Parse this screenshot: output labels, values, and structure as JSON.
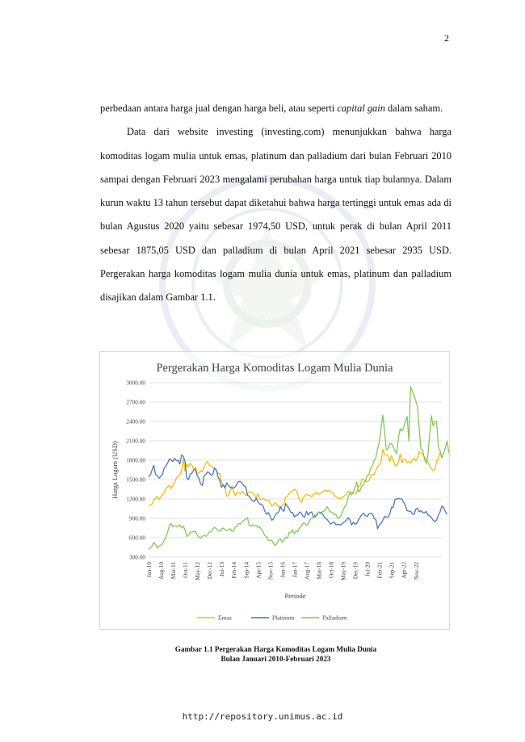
{
  "page_number": "2",
  "paragraphs": [
    {
      "indent": false,
      "parts": [
        {
          "text": "perbedaan antara harga jual dengan harga beli, atau seperti ",
          "italic": false
        },
        {
          "text": "capital gain",
          "italic": true
        },
        {
          "text": " dalam saham.",
          "italic": false
        }
      ]
    },
    {
      "indent": true,
      "parts": [
        {
          "text": "Data dari website investing (investing.com) menunjukkan bahwa harga komoditas logam mulia untuk emas, platinum dan palladium dari bulan Februari 2010 sampai dengan Februari 2023 mengalami perubahan harga untuk tiap bulannya. Dalam kurun waktu 13 tahun tersebut dapat diketahui bahwa harga tertinggi untuk emas ada di bulan Agustus 2020 yaitu sebesar 1974,50 USD, untuk perak di bulan April 2011 sebesar 1875,05 USD dan palladium di bulan April 2021 sebesar 2935 USD. Pergerakan harga komoditas logam mulia dunia untuk emas, platinum dan palladium disajikan dalam Gambar 1.1.",
          "italic": false
        }
      ]
    }
  ],
  "chart_data": {
    "type": "line",
    "title": "Pergerakan Harga Komoditas Logam Mulia Dunia",
    "xlabel": "Periode",
    "ylabel": "Harga Logam (USD)",
    "ylim": [
      300,
      3000
    ],
    "yticks": [
      "300.00",
      "600.00",
      "900.00",
      "1200.00",
      "1500.00",
      "1800.00",
      "2100.00",
      "2400.00",
      "2700.00",
      "3000.00"
    ],
    "ytick_values": [
      300,
      600,
      900,
      1200,
      1500,
      1800,
      2100,
      2400,
      2700,
      3000
    ],
    "x_tick_labels": [
      "Jan-10",
      "Aug-10",
      "Mar-11",
      "Oct-11",
      "May-12",
      "Dec-12",
      "Jul-13",
      "Feb-14",
      "Sep-14",
      "Apr-15",
      "Nov-15",
      "Jun-16",
      "Jan-17",
      "Aug-17",
      "Mar-18",
      "Oct-18",
      "May-19",
      "Dec-19",
      "Jul-20",
      "Feb-21",
      "Sep-21",
      "Apr-22",
      "Nov-22"
    ],
    "grid": true,
    "legend_position": "bottom",
    "series": [
      {
        "name": "Emas",
        "color": "#f5b800",
        "values": [
          1090,
          1110,
          1120,
          1180,
          1210,
          1240,
          1190,
          1230,
          1260,
          1300,
          1360,
          1390,
          1410,
          1360,
          1420,
          1440,
          1530,
          1550,
          1570,
          1630,
          1820,
          1630,
          1740,
          1700,
          1750,
          1720,
          1660,
          1690,
          1590,
          1600,
          1640,
          1620,
          1700,
          1750,
          1780,
          1720,
          1710,
          1690,
          1670,
          1640,
          1600,
          1590,
          1460,
          1420,
          1390,
          1240,
          1260,
          1330,
          1400,
          1320,
          1250,
          1300,
          1300,
          1280,
          1320,
          1290,
          1250,
          1280,
          1310,
          1310,
          1290,
          1260,
          1210,
          1280,
          1200,
          1190,
          1210,
          1190,
          1180,
          1180,
          1140,
          1090,
          1110,
          1140,
          1110,
          1080,
          1060,
          1100,
          1120,
          1230,
          1240,
          1290,
          1310,
          1320,
          1350,
          1330,
          1270,
          1180,
          1150,
          1210,
          1250,
          1270,
          1260,
          1260,
          1230,
          1270,
          1280,
          1310,
          1270,
          1280,
          1310,
          1320,
          1340,
          1320,
          1330,
          1310,
          1300,
          1260,
          1230,
          1220,
          1200,
          1210,
          1230,
          1250,
          1280,
          1320,
          1310,
          1300,
          1290,
          1280,
          1300,
          1400,
          1410,
          1510,
          1500,
          1470,
          1470,
          1480,
          1560,
          1580,
          1580,
          1640,
          1700,
          1730,
          1770,
          1970,
          1890,
          1880,
          1870,
          1780,
          1870,
          1800,
          1730,
          1710,
          1770,
          1900,
          1760,
          1810,
          1810,
          1760,
          1780,
          1760,
          1800,
          1830,
          1790,
          1830,
          1930,
          1910,
          1890,
          1850,
          1810,
          1770,
          1710,
          1670,
          1640,
          1660,
          1770,
          1830,
          1920,
          1830
        ]
      },
      {
        "name": "Platinum",
        "color": "#4472c4",
        "values": [
          1540,
          1570,
          1650,
          1720,
          1580,
          1560,
          1520,
          1550,
          1580,
          1680,
          1710,
          1760,
          1820,
          1800,
          1780,
          1830,
          1790,
          1800,
          1740,
          1880,
          1860,
          1780,
          1520,
          1500,
          1580,
          1600,
          1650,
          1660,
          1560,
          1520,
          1430,
          1410,
          1560,
          1580,
          1620,
          1600,
          1570,
          1580,
          1680,
          1650,
          1540,
          1490,
          1380,
          1420,
          1370,
          1450,
          1410,
          1380,
          1370,
          1370,
          1390,
          1440,
          1470,
          1470,
          1440,
          1400,
          1390,
          1260,
          1240,
          1200,
          1170,
          1160,
          1210,
          1160,
          1120,
          1120,
          1090,
          1010,
          960,
          990,
          940,
          870,
          890,
          950,
          980,
          1000,
          1080,
          1030,
          1010,
          1130,
          1090,
          1050,
          990,
          990,
          920,
          950,
          950,
          1000,
          980,
          930,
          920,
          1010,
          950,
          990,
          1000,
          920,
          920,
          960,
          1000,
          990,
          980,
          930,
          900,
          880,
          840,
          810,
          830,
          840,
          800,
          810,
          800,
          800,
          830,
          850,
          870,
          910,
          880,
          800,
          840,
          810,
          820,
          880,
          920,
          960,
          980,
          940,
          930,
          970,
          980,
          970,
          900,
          880,
          740,
          800,
          820,
          870,
          930,
          920,
          920,
          970,
          1070,
          1070,
          1190,
          1200,
          1210,
          1200,
          1200,
          1150,
          1100,
          1020,
          1010,
          1010,
          970,
          960,
          1040,
          1060,
          1000,
          1020,
          990,
          980,
          1010,
          950,
          940,
          910,
          870,
          850,
          870,
          950,
          1000,
          1090,
          1070,
          1010,
          960
        ]
      },
      {
        "name": "Palladium",
        "color": "#7ec850",
        "values": [
          420,
          440,
          470,
          530,
          490,
          440,
          470,
          480,
          510,
          560,
          610,
          690,
          790,
          820,
          770,
          790,
          780,
          770,
          800,
          750,
          780,
          720,
          620,
          640,
          680,
          690,
          690,
          700,
          640,
          610,
          590,
          620,
          640,
          620,
          650,
          690,
          690,
          740,
          760,
          740,
          710,
          700,
          730,
          750,
          730,
          710,
          720,
          740,
          700,
          710,
          770,
          780,
          820,
          810,
          850,
          870,
          890,
          910,
          790,
          780,
          800,
          780,
          790,
          760,
          770,
          730,
          690,
          630,
          620,
          560,
          560,
          560,
          510,
          480,
          510,
          570,
          580,
          530,
          570,
          610,
          590,
          680,
          680,
          720,
          660,
          710,
          690,
          760,
          780,
          820,
          830,
          790,
          810,
          880,
          900,
          910,
          960,
          940,
          1000,
          970,
          1000,
          1010,
          1030,
          1080,
          1020,
          1000,
          990,
          960,
          960,
          900,
          910,
          950,
          1020,
          1080,
          1110,
          1230,
          1300,
          1260,
          1310,
          1380,
          1460,
          1310,
          1340,
          1400,
          1430,
          1480,
          1560,
          1580,
          1680,
          1710,
          1800,
          1840,
          1980,
          2070,
          2300,
          2500,
          2250,
          1960,
          1980,
          2050,
          2060,
          2000,
          1950,
          1900,
          2150,
          2290,
          2250,
          2310,
          2390,
          2480,
          2100,
          2940,
          2870,
          2800,
          2720,
          2630,
          2280,
          1970,
          1960,
          1820,
          1750,
          1880,
          2200,
          2490,
          2330,
          2400,
          2400,
          2000,
          1950,
          1840,
          1900,
          1990,
          2100,
          1930,
          1860,
          1790,
          1780,
          1730,
          1870,
          1900,
          1890,
          1720,
          1450
        ]
      }
    ]
  },
  "caption_lines": [
    "Gambar 1.1 Pergerakan Harga Komoditas Logam Mulia Dunia",
    "Bulan Januari 2010-Februari 2023"
  ],
  "footer_url": "http://repository.unimus.ac.id"
}
